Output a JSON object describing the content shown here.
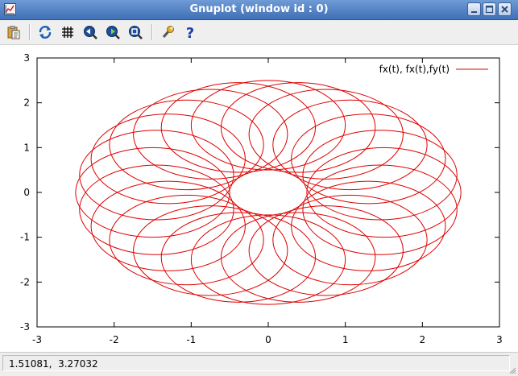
{
  "window": {
    "title": "Gnuplot (window id : 0)"
  },
  "toolbar": {
    "buttons": [
      {
        "icon": "copy-to-clipboard-icon"
      },
      {
        "icon": "replot-icon"
      },
      {
        "icon": "grid-icon"
      },
      {
        "icon": "zoom-previous-icon"
      },
      {
        "icon": "zoom-next-icon"
      },
      {
        "icon": "autoscale-icon"
      },
      {
        "icon": "options-icon"
      },
      {
        "icon": "help-icon"
      }
    ]
  },
  "colors": {
    "curve": "#dd0000",
    "axes": "#000000"
  },
  "chart_data": {
    "type": "line",
    "title": "",
    "xlabel": "",
    "ylabel": "",
    "xlim": [
      -3,
      3
    ],
    "ylim": [
      -3,
      3
    ],
    "xticks": [
      "-3",
      "-2",
      "-1",
      "0",
      "1",
      "2",
      "3"
    ],
    "yticks": [
      "-3",
      "-2",
      "-1",
      "0",
      "1",
      "2",
      "3"
    ],
    "grid": false,
    "legend_position": "top-right",
    "series": [
      {
        "name": "fx(t), fx(t),fy(t)",
        "shape": "torus of ellipses",
        "circle_count": 24,
        "ring_center_x_radius": 1.5,
        "ring_center_y_radius": 1.5,
        "circle_x_radius": 1.0,
        "circle_y_radius": 1.0,
        "outer_x_radius": 2.5,
        "outer_y_radius": 2.5,
        "inner_x_radius": 0.5,
        "inner_y_radius": 0.5
      }
    ]
  },
  "status": {
    "coordinates": "1.51081,  3.27032"
  }
}
